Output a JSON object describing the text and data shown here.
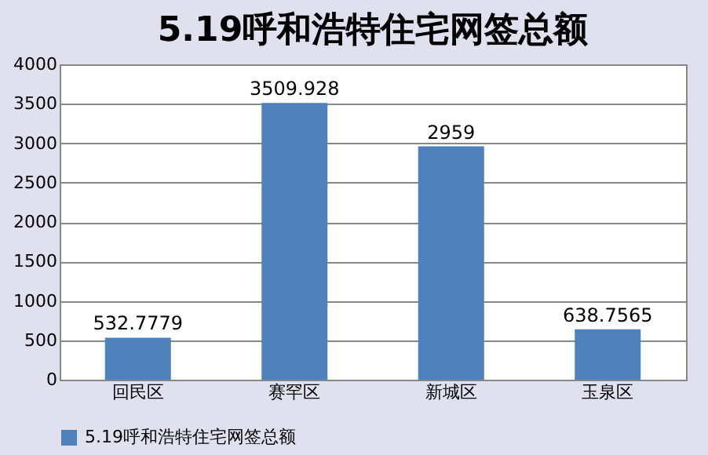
{
  "chart_data": {
    "type": "bar",
    "title": "5.19呼和浩特住宅网签总额",
    "categories": [
      "回民区",
      "赛罕区",
      "新城区",
      "玉泉区"
    ],
    "series": [
      {
        "name": "5.19呼和浩特住宅网签总额",
        "color": "#4f81bd",
        "values": [
          532.7779,
          3509.928,
          2959,
          638.7565
        ]
      }
    ],
    "ylim": [
      0,
      4000
    ],
    "yticks": [
      0,
      500,
      1000,
      1500,
      2000,
      2500,
      3000,
      3500,
      4000
    ],
    "grid": "y",
    "legend": "bottom",
    "data_labels": true
  }
}
